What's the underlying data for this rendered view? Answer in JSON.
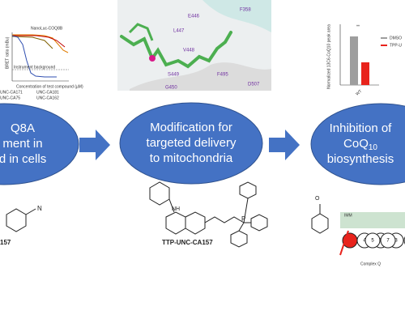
{
  "steps": [
    {
      "lines": [
        "Q8A",
        "ment in",
        "d in cells"
      ]
    },
    {
      "lines": [
        "Modification for",
        "targeted delivery",
        "to mitochondria"
      ]
    },
    {
      "lines": [
        "Inhibition of",
        {
          "text": "CoQ",
          "sub": "10"
        },
        "biosynthesis"
      ]
    }
  ],
  "dose_panel": {
    "title": "NanoLuc-COQ8B",
    "y_label": "BRET ratio (mBu)",
    "x_label": "Concentration of test compound (µM)",
    "note": "Instrument background",
    "legend": [
      "UNC-CA171",
      "UNC-CA181",
      "UNC-CA75",
      "UNC-CA162"
    ]
  },
  "structure_panel": {
    "residues": [
      "E446",
      "F358",
      "L447",
      "V448",
      "S449",
      "F495",
      "G450",
      "D507"
    ]
  },
  "bar_panel": {
    "y_label": "Normalized 13C6-CoQ10 peak area",
    "legend": [
      "DMSO",
      "TPP-U"
    ],
    "category": "WT",
    "significance": "**"
  },
  "compound_left": "157",
  "compound_main": "TTP-UNC-CA157",
  "complex_panel": {
    "membrane": "IMM",
    "name": "Complex Q",
    "subunits": [
      "4",
      "6",
      "3",
      "9",
      "5",
      "7"
    ]
  }
}
